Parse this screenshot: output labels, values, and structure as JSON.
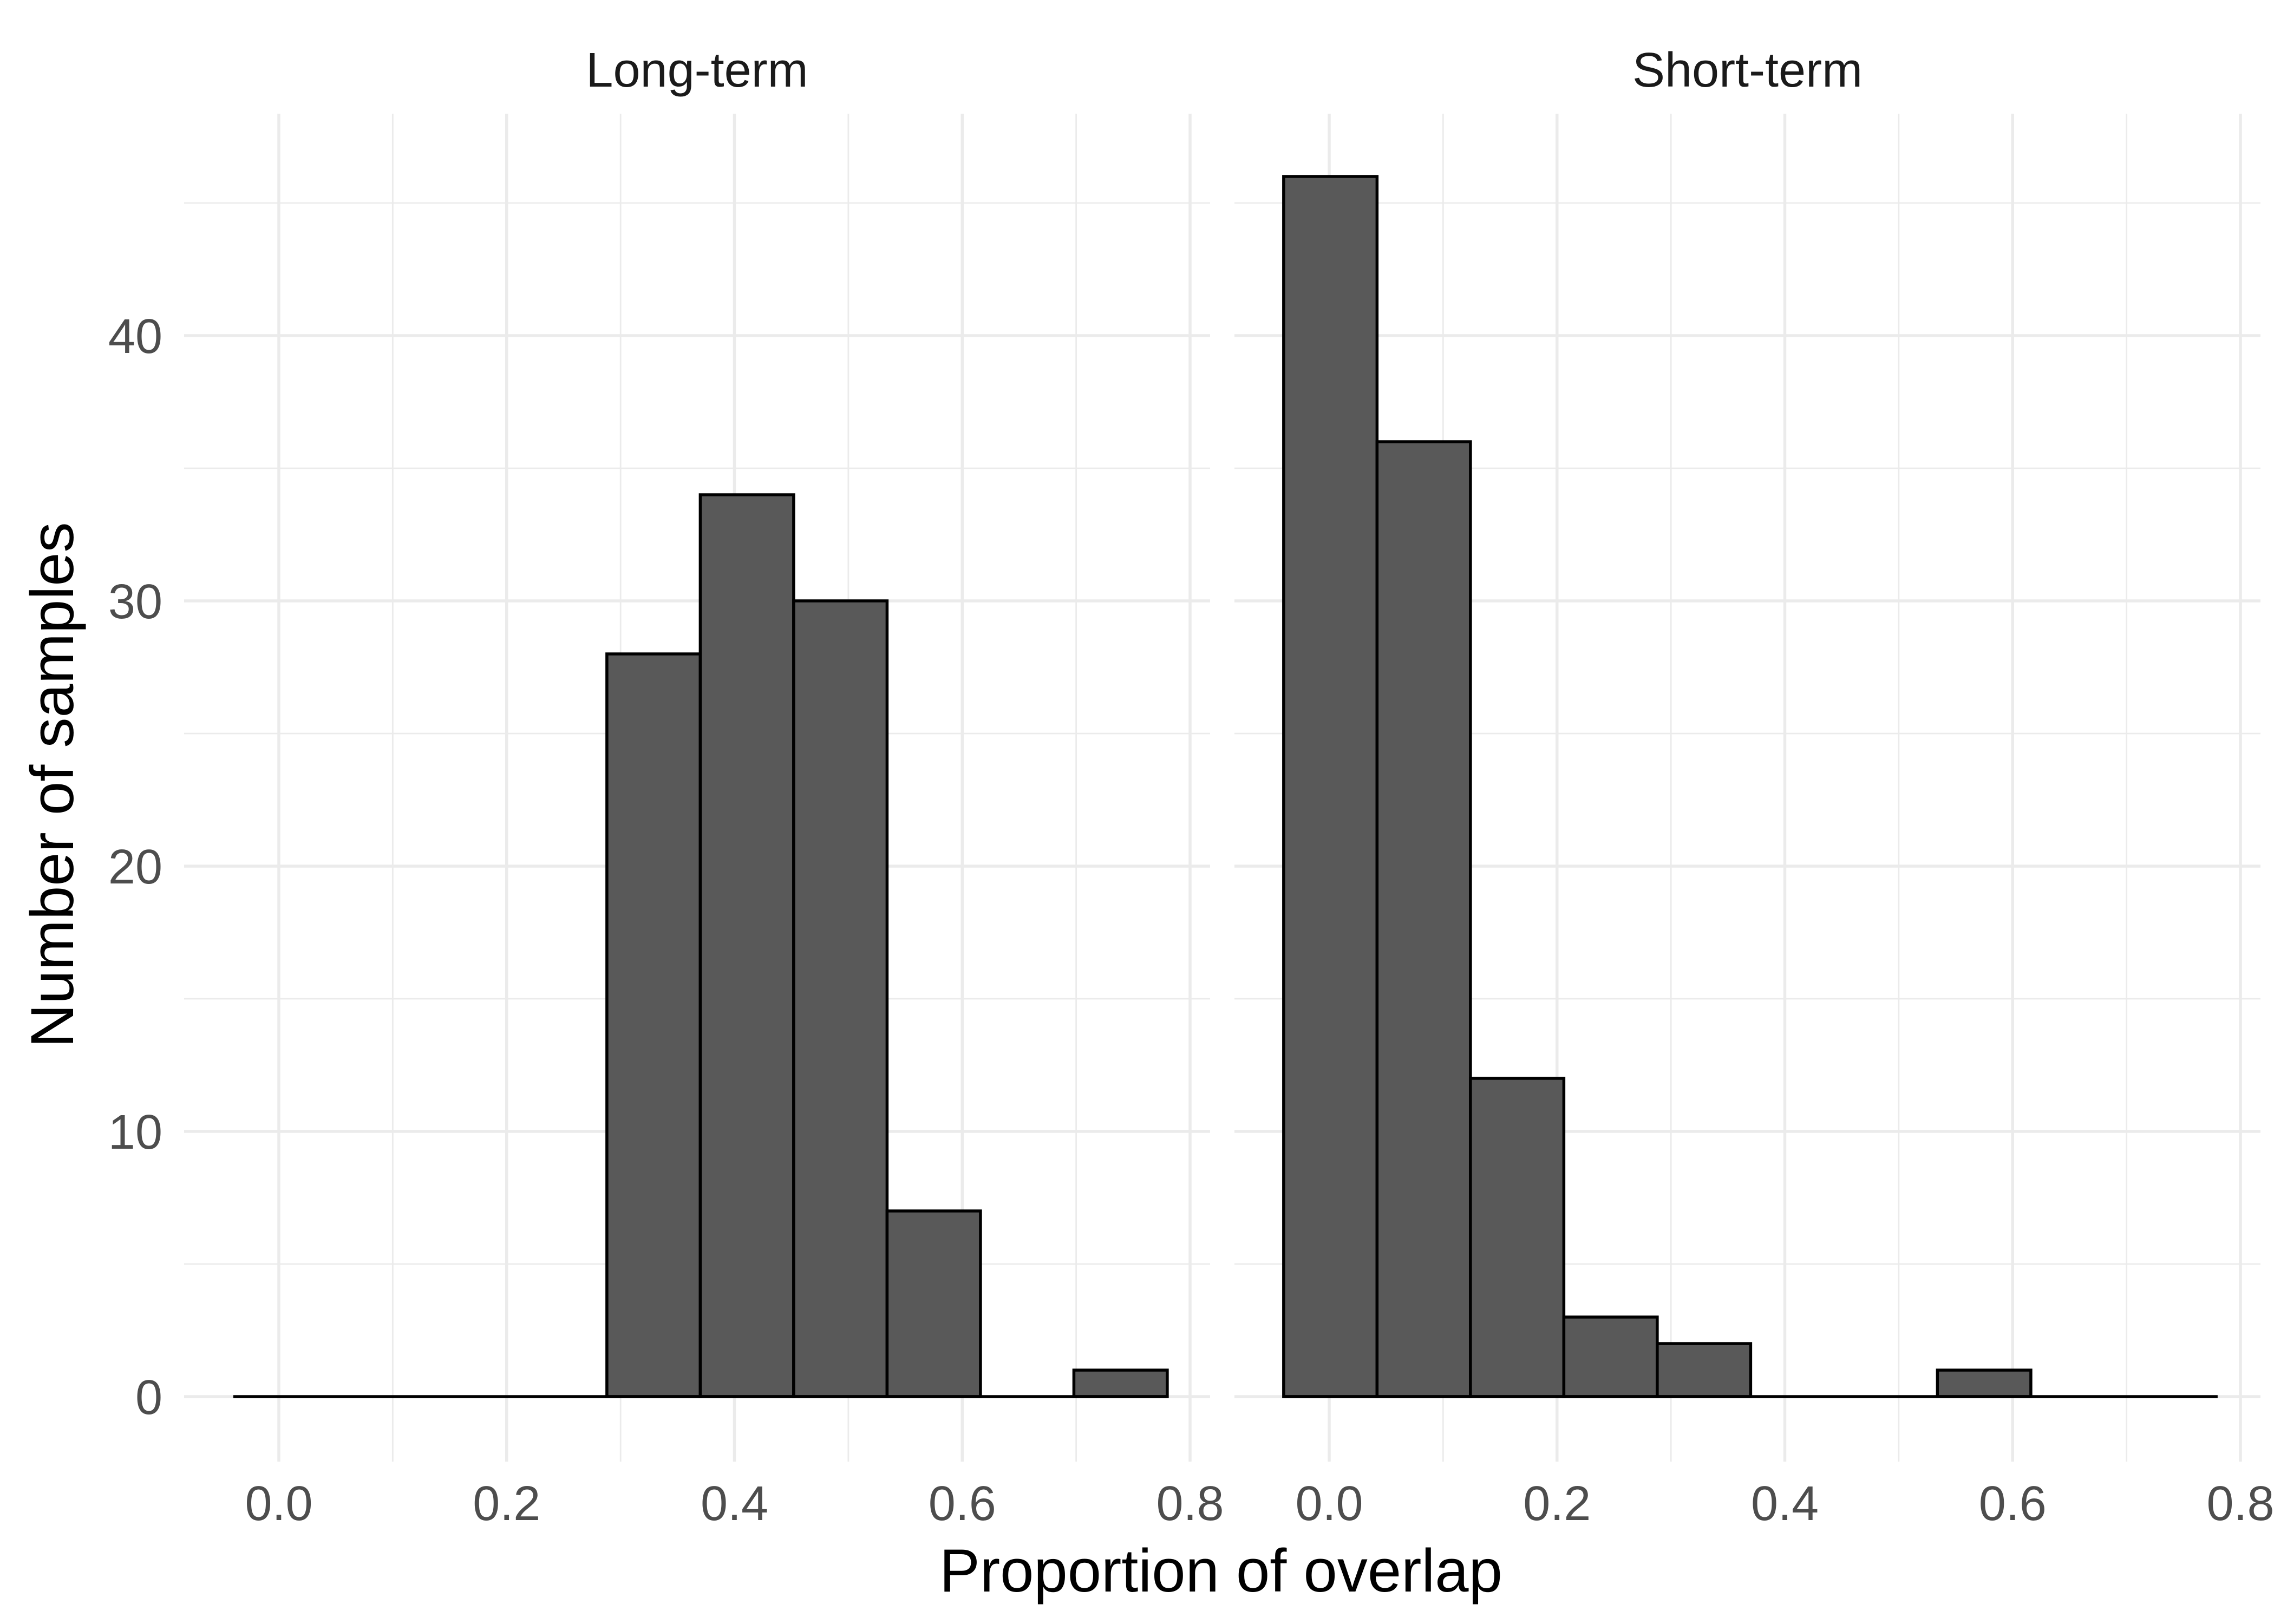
{
  "chart_data": {
    "type": "bar",
    "subtype": "faceted-histogram",
    "xlabel": "Proportion of overlap",
    "ylabel": "Number of samples",
    "xlim": [
      -0.04,
      0.78
    ],
    "ylim": [
      0,
      46
    ],
    "x_ticks": [
      "0.0",
      "0.2",
      "0.4",
      "0.6",
      "0.8"
    ],
    "y_ticks": [
      "0",
      "10",
      "20",
      "30",
      "40"
    ],
    "grid": true,
    "bar_color": "#595959",
    "bar_outline": "#000000",
    "panels": [
      {
        "facet": "Long-term",
        "bin_width": 0.082,
        "bins": [
          {
            "x0": -0.04,
            "x1": 0.042,
            "count": 0
          },
          {
            "x0": 0.042,
            "x1": 0.124,
            "count": 0
          },
          {
            "x0": 0.124,
            "x1": 0.206,
            "count": 0
          },
          {
            "x0": 0.206,
            "x1": 0.288,
            "count": 0
          },
          {
            "x0": 0.288,
            "x1": 0.37,
            "count": 28
          },
          {
            "x0": 0.37,
            "x1": 0.452,
            "count": 34
          },
          {
            "x0": 0.452,
            "x1": 0.534,
            "count": 30
          },
          {
            "x0": 0.534,
            "x1": 0.616,
            "count": 7
          },
          {
            "x0": 0.616,
            "x1": 0.698,
            "count": 0
          },
          {
            "x0": 0.698,
            "x1": 0.78,
            "count": 1
          }
        ]
      },
      {
        "facet": "Short-term",
        "bin_width": 0.082,
        "bins": [
          {
            "x0": -0.04,
            "x1": 0.042,
            "count": 46
          },
          {
            "x0": 0.042,
            "x1": 0.124,
            "count": 36
          },
          {
            "x0": 0.124,
            "x1": 0.206,
            "count": 12
          },
          {
            "x0": 0.206,
            "x1": 0.288,
            "count": 3
          },
          {
            "x0": 0.288,
            "x1": 0.37,
            "count": 2
          },
          {
            "x0": 0.37,
            "x1": 0.452,
            "count": 0
          },
          {
            "x0": 0.452,
            "x1": 0.534,
            "count": 0
          },
          {
            "x0": 0.534,
            "x1": 0.616,
            "count": 1
          },
          {
            "x0": 0.616,
            "x1": 0.698,
            "count": 0
          },
          {
            "x0": 0.698,
            "x1": 0.78,
            "count": 0
          }
        ]
      }
    ]
  }
}
